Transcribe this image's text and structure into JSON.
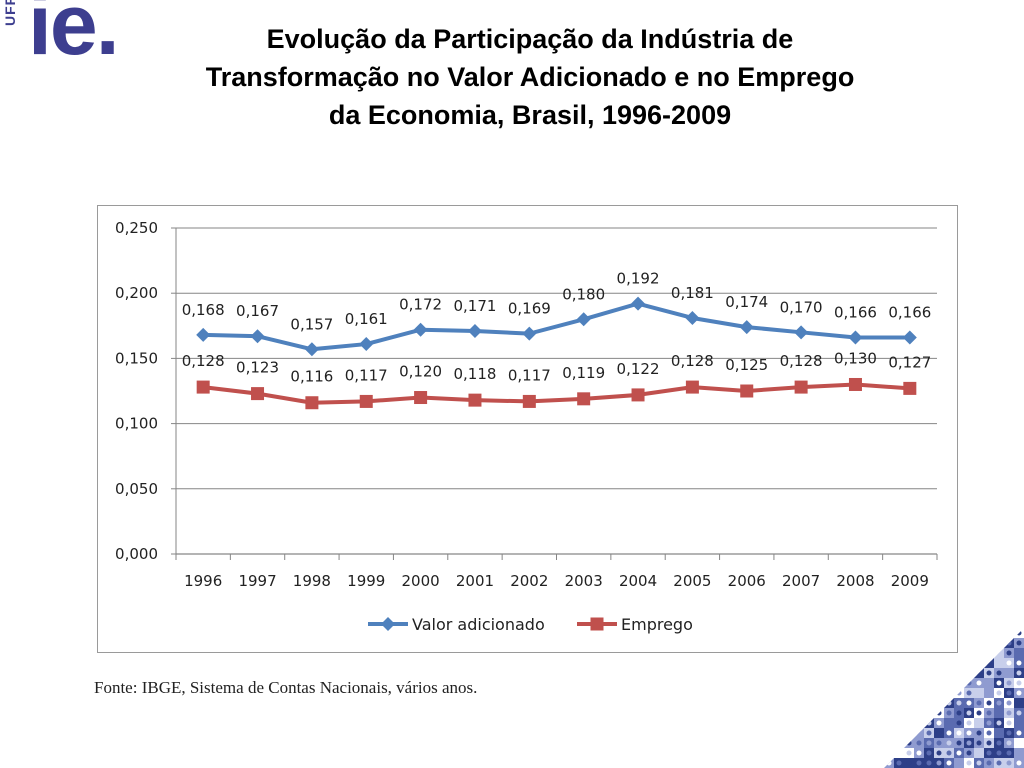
{
  "logo": {
    "side_text": "UFRJ",
    "main_text": "ie."
  },
  "slide": {
    "title_lines": [
      "Evolução da Participação da Indústria de",
      "Transformação no Valor Adicionado e no Emprego",
      "da Economia, Brasil, 1996-2009"
    ],
    "source": "Fonte: IBGE, Sistema de Contas Nacionais, vários anos."
  },
  "colors": {
    "valor": "#4f81bd",
    "emprego": "#c0504d",
    "logo": "#3d3e8f",
    "grid": "#868686"
  },
  "chart_data": {
    "type": "line",
    "title": "",
    "xlabel": "",
    "ylabel": "",
    "ylim": [
      0,
      0.25
    ],
    "y_ticks": [
      "0,000",
      "0,050",
      "0,100",
      "0,150",
      "0,200",
      "0,250"
    ],
    "y_tick_values": [
      0,
      0.05,
      0.1,
      0.15,
      0.2,
      0.25
    ],
    "grid": true,
    "legend_position": "bottom",
    "categories": [
      "1996",
      "1997",
      "1998",
      "1999",
      "2000",
      "2001",
      "2002",
      "2003",
      "2004",
      "2005",
      "2006",
      "2007",
      "2008",
      "2009"
    ],
    "series": [
      {
        "name": "Valor adicionado",
        "marker": "diamond",
        "values": [
          0.168,
          0.167,
          0.157,
          0.161,
          0.172,
          0.171,
          0.169,
          0.18,
          0.192,
          0.181,
          0.174,
          0.17,
          0.166,
          0.166
        ],
        "labels": [
          "0,168",
          "0,167",
          "0,157",
          "0,161",
          "0,172",
          "0,171",
          "0,169",
          "0,180",
          "0,192",
          "0,181",
          "0,174",
          "0,170",
          "0,166",
          "0,166"
        ]
      },
      {
        "name": "Emprego",
        "marker": "square",
        "values": [
          0.128,
          0.123,
          0.116,
          0.117,
          0.12,
          0.118,
          0.117,
          0.119,
          0.122,
          0.128,
          0.125,
          0.128,
          0.13,
          0.127
        ],
        "labels": [
          "0,128",
          "0,123",
          "0,116",
          "0,117",
          "0,120",
          "0,118",
          "0,117",
          "0,119",
          "0,122",
          "0,128",
          "0,125",
          "0,128",
          "0,130",
          "0,127"
        ]
      }
    ]
  }
}
